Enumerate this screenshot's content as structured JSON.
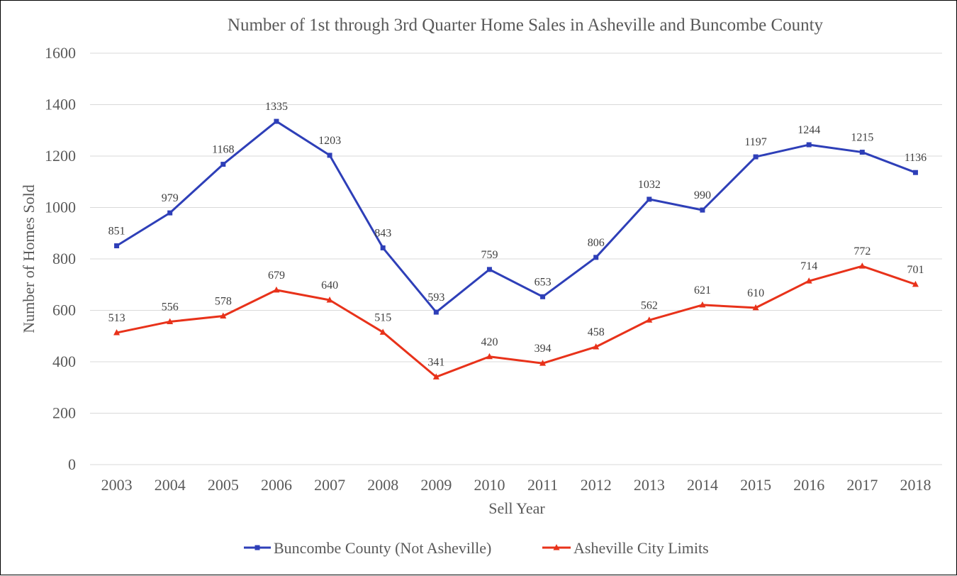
{
  "chart_data": {
    "type": "line",
    "title": "Number of 1st through 3rd Quarter Home Sales in Asheville and Buncombe County",
    "xlabel": "Sell Year",
    "ylabel": "Number of Homes Sold",
    "ylim": [
      0,
      1600
    ],
    "yticks": [
      0,
      200,
      400,
      600,
      800,
      1000,
      1200,
      1400,
      1600
    ],
    "categories": [
      "2003",
      "2004",
      "2005",
      "2006",
      "2007",
      "2008",
      "2009",
      "2010",
      "2011",
      "2012",
      "2013",
      "2014",
      "2015",
      "2016",
      "2017",
      "2018"
    ],
    "grid": true,
    "legend_position": "bottom",
    "series": [
      {
        "name": "Buncombe County (Not Asheville)",
        "color": "#2e3fb8",
        "marker": "square",
        "values": [
          851,
          979,
          1168,
          1335,
          1203,
          843,
          593,
          759,
          653,
          806,
          1032,
          990,
          1197,
          1244,
          1215,
          1136
        ]
      },
      {
        "name": "Asheville City Limits",
        "color": "#e8321a",
        "marker": "triangle",
        "values": [
          513,
          556,
          578,
          679,
          640,
          515,
          341,
          420,
          394,
          458,
          562,
          621,
          610,
          714,
          772,
          701
        ]
      }
    ]
  }
}
